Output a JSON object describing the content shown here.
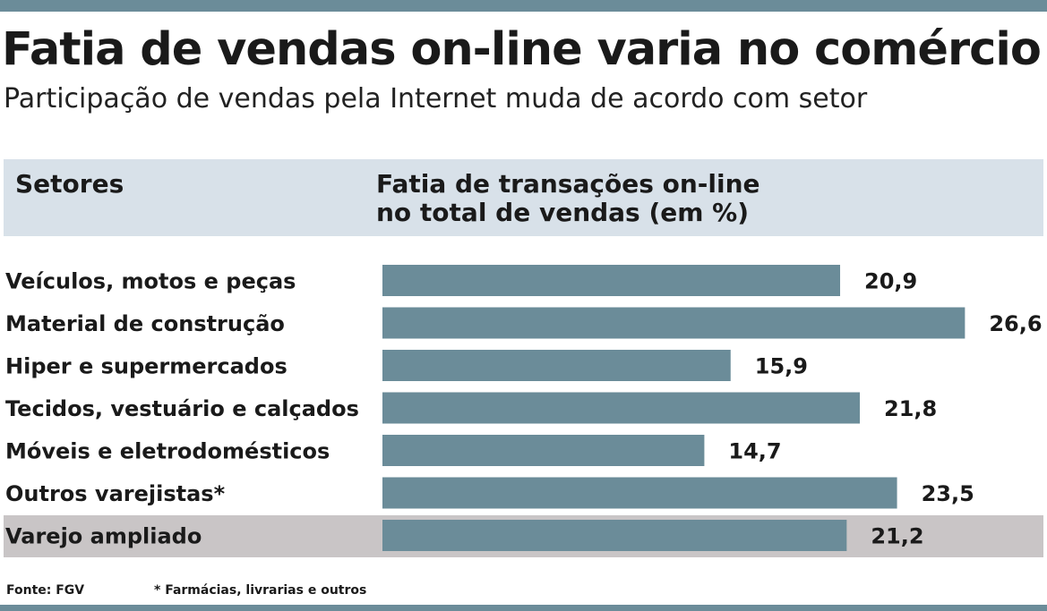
{
  "title": "Fatia de vendas on-line varia no comércio",
  "subtitle": "Participação de vendas pela Internet muda de acordo com setor",
  "table_header": {
    "sectors": "Setores",
    "share_line1": "Fatia de transações on-line",
    "share_line2": "no total de vendas (em %)"
  },
  "chart_data": {
    "type": "bar",
    "orientation": "horizontal",
    "categories": [
      "Veículos, motos e peças",
      "Material de construção",
      "Hiper e supermercados",
      "Tecidos, vestuário e calçados",
      "Móveis e eletrodomésticos",
      "Outros varejistas*",
      "Varejo ampliado"
    ],
    "values": [
      20.9,
      26.6,
      15.9,
      21.8,
      14.7,
      23.5,
      21.2
    ],
    "value_labels": [
      "20,9",
      "26,6",
      "15,9",
      "21,8",
      "14,7",
      "23,5",
      "21,2"
    ],
    "highlighted_category": "Varejo ampliado",
    "bar_color": "#6b8c99",
    "highlight_color": "#c9c5c6"
  },
  "footer": {
    "source": "Fonte: FGV",
    "note": "* Farmácias, livrarias e outros"
  }
}
